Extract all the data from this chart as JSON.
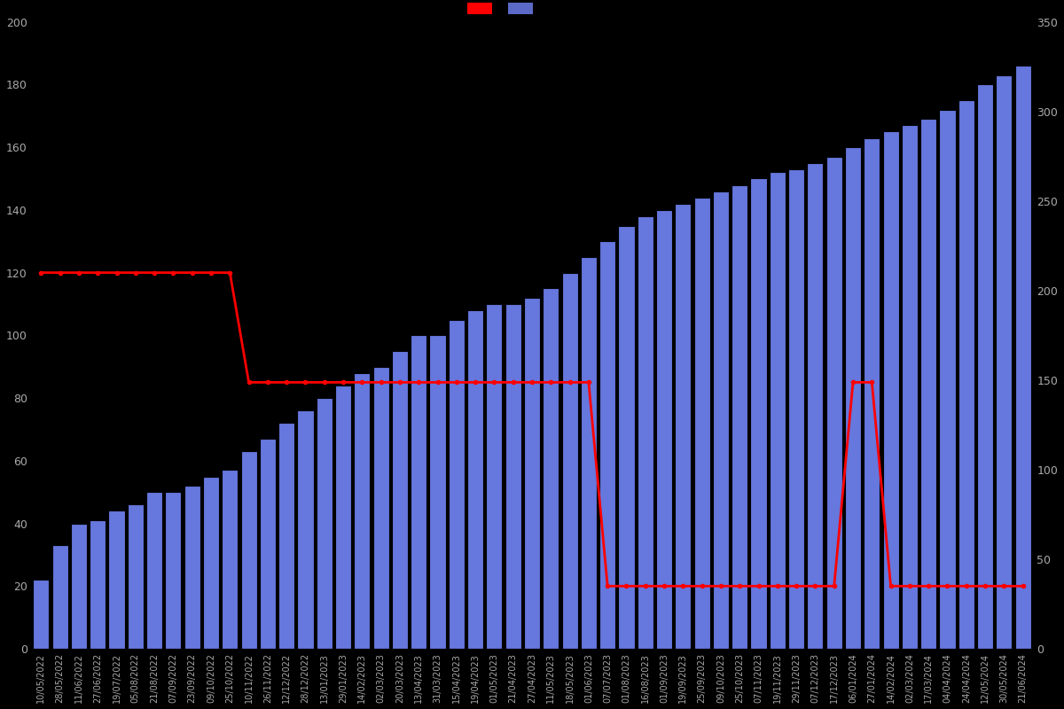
{
  "background_color": "#000000",
  "bar_color": "#6677dd",
  "bar_edge_color": "#000000",
  "line_color": "#ff0000",
  "left_ylim": [
    0,
    200
  ],
  "right_ylim": [
    0,
    350
  ],
  "left_yticks": [
    0,
    20,
    40,
    60,
    80,
    100,
    120,
    140,
    160,
    180,
    200
  ],
  "right_yticks": [
    0,
    50,
    100,
    150,
    200,
    250,
    300,
    350
  ],
  "tick_color": "#aaaaaa",
  "dates": [
    "10/05/2022",
    "28/05/2022",
    "11/06/2022",
    "27/06/2022",
    "19/07/2022",
    "05/08/2022",
    "21/08/2022",
    "07/09/2022",
    "23/09/2022",
    "09/10/2022",
    "25/10/2022",
    "10/11/2022",
    "26/11/2022",
    "12/12/2022",
    "28/12/2022",
    "13/01/2023",
    "29/01/2023",
    "14/02/2023",
    "02/03/2023",
    "20/03/2023",
    "13/04/2023",
    "31/03/2023",
    "15/04/2023",
    "19/04/2023",
    "01/05/2023",
    "21/04/2023",
    "27/04/2023",
    "11/05/2023",
    "18/05/2023",
    "01/06/2023",
    "07/07/2023",
    "01/08/2023",
    "16/08/2023",
    "01/09/2023",
    "19/09/2023",
    "25/09/2023",
    "09/10/2023",
    "25/10/2023",
    "07/11/2023",
    "19/11/2023",
    "29/11/2023",
    "07/12/2023",
    "17/12/2023",
    "06/01/2024",
    "27/01/2024",
    "14/02/2024",
    "02/03/2024",
    "17/03/2024",
    "04/04/2024",
    "24/04/2024",
    "12/05/2024",
    "30/05/2024",
    "21/06/2024"
  ],
  "bar_values": [
    22,
    33,
    40,
    41,
    44,
    46,
    50,
    50,
    52,
    55,
    57,
    63,
    67,
    72,
    76,
    80,
    84,
    88,
    90,
    95,
    100,
    100,
    105,
    108,
    110,
    110,
    112,
    115,
    120,
    125,
    130,
    135,
    138,
    140,
    142,
    144,
    146,
    148,
    150,
    152,
    153,
    155,
    157,
    160,
    163,
    165,
    167,
    169,
    172,
    175,
    180,
    183,
    186
  ],
  "line_values": [
    120,
    120,
    120,
    120,
    120,
    120,
    120,
    120,
    120,
    120,
    120,
    85,
    85,
    85,
    85,
    85,
    85,
    85,
    85,
    85,
    85,
    85,
    85,
    85,
    85,
    85,
    85,
    85,
    85,
    85,
    20,
    20,
    20,
    20,
    20,
    20,
    20,
    20,
    20,
    20,
    20,
    20,
    20,
    85,
    85,
    20,
    20,
    20,
    20,
    20,
    20,
    20,
    20
  ],
  "line_marker_size": 3,
  "line_width": 2,
  "figsize": [
    12.0,
    8.0
  ],
  "dpi": 100
}
